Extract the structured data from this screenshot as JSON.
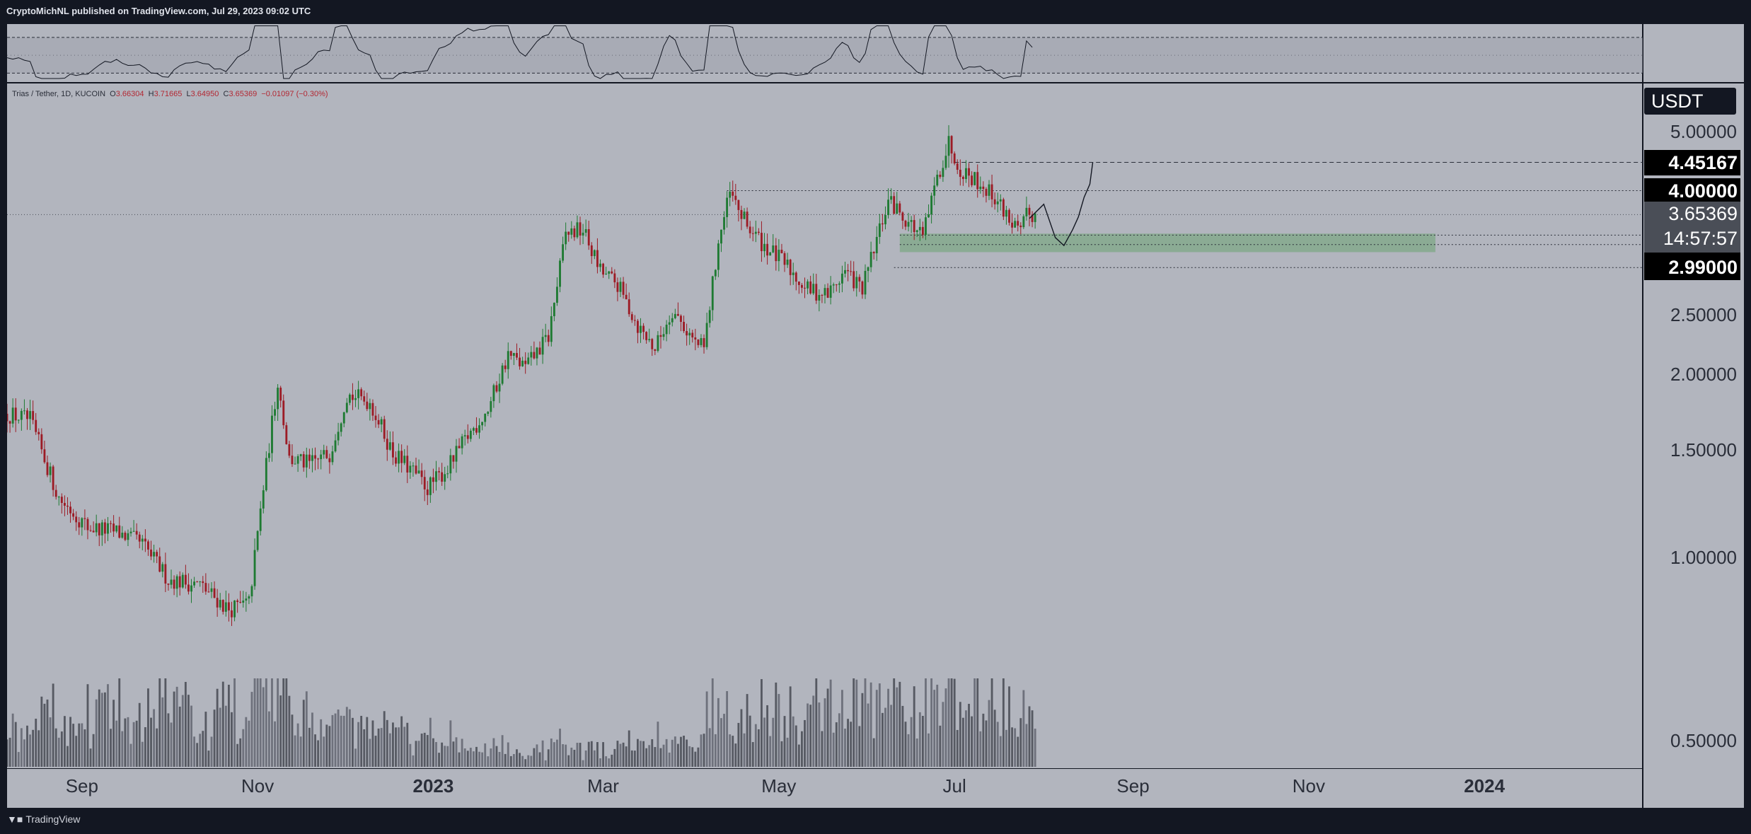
{
  "header": {
    "published_text": "CryptoMichNL published on TradingView.com, Jul 29, 2023 09:02 UTC"
  },
  "legend": {
    "symbol": "Trias / Tether, 1D, KUCOIN",
    "o_label": "O",
    "o": "3.66304",
    "h_label": "H",
    "h": "3.71665",
    "l_label": "L",
    "l": "3.64950",
    "c_label": "C",
    "c": "3.65369",
    "change": "−0.01097 (−0.30%)"
  },
  "footer": {
    "brand": "TradingView"
  },
  "axis": {
    "currency": "USDT",
    "current_price": "3.65369",
    "countdown": "14:57:57"
  },
  "colors": {
    "panel_bg": "#b2b5be",
    "frame": "#131722",
    "up": "#1e7a32",
    "down": "#9c1b25",
    "zone": "#7ea885",
    "level_label_bg": "#000000"
  },
  "chart_data": {
    "type": "candlestick",
    "title": "Trias / Tether, 1D, KUCOIN",
    "y_scale": "log",
    "ylim": [
      0.45,
      6.0
    ],
    "y_ticks": [
      "5.00000",
      "2.50000",
      "2.00000",
      "1.50000",
      "1.00000",
      "0.50000"
    ],
    "x_ticks": [
      {
        "label": "Sep",
        "date": "2022-09-01",
        "bold": false
      },
      {
        "label": "Nov",
        "date": "2022-11-01",
        "bold": false
      },
      {
        "label": "2023",
        "date": "2023-01-01",
        "bold": true
      },
      {
        "label": "Mar",
        "date": "2023-03-01",
        "bold": false
      },
      {
        "label": "May",
        "date": "2023-05-01",
        "bold": false
      },
      {
        "label": "Jul",
        "date": "2023-07-01",
        "bold": false
      },
      {
        "label": "Sep",
        "date": "2023-09-01",
        "bold": false
      },
      {
        "label": "Nov",
        "date": "2023-11-01",
        "bold": false
      },
      {
        "label": "2024",
        "date": "2024-01-01",
        "bold": true
      }
    ],
    "x_range": [
      "2022-08-06",
      "2024-02-25"
    ],
    "levels": [
      {
        "price": 4.45167,
        "label": "4.45167",
        "style": "dashed",
        "from": "2023-07-01"
      },
      {
        "price": 4.0,
        "label": "4.00000",
        "style": "dotted",
        "from": "2023-04-13"
      },
      {
        "price": 3.381,
        "label": "3.38100",
        "style": "dotted",
        "from": "2023-06-12"
      },
      {
        "price": 3.26213,
        "label": "3.26213",
        "style": "dotted",
        "from": "2023-06-12"
      },
      {
        "price": 2.99,
        "label": "2.99000",
        "style": "dotted",
        "from": "2023-06-10"
      }
    ],
    "support_zone": {
      "from": "2023-06-12",
      "to": "2023-12-15",
      "low": 3.17,
      "high": 3.4
    },
    "projection": [
      {
        "date": "2023-07-27",
        "price": 3.6
      },
      {
        "date": "2023-08-01",
        "price": 3.8
      },
      {
        "date": "2023-08-05",
        "price": 3.35
      },
      {
        "date": "2023-08-08",
        "price": 3.25
      },
      {
        "date": "2023-08-11",
        "price": 3.45
      },
      {
        "date": "2023-08-13",
        "price": 3.62
      },
      {
        "date": "2023-08-15",
        "price": 3.9
      },
      {
        "date": "2023-08-17",
        "price": 4.1
      },
      {
        "date": "2023-08-18",
        "price": 4.45
      }
    ],
    "price_path": [
      {
        "date": "2022-08-06",
        "price": 1.72
      },
      {
        "date": "2022-08-14",
        "price": 1.68
      },
      {
        "date": "2022-08-24",
        "price": 1.25
      },
      {
        "date": "2022-09-03",
        "price": 1.12
      },
      {
        "date": "2022-09-13",
        "price": 1.1
      },
      {
        "date": "2022-09-22",
        "price": 1.05
      },
      {
        "date": "2022-10-01",
        "price": 0.92
      },
      {
        "date": "2022-10-12",
        "price": 0.9
      },
      {
        "date": "2022-10-22",
        "price": 0.82
      },
      {
        "date": "2022-10-29",
        "price": 0.84
      },
      {
        "date": "2022-11-03",
        "price": 1.3
      },
      {
        "date": "2022-11-08",
        "price": 1.95
      },
      {
        "date": "2022-11-12",
        "price": 1.45
      },
      {
        "date": "2022-11-19",
        "price": 1.42
      },
      {
        "date": "2022-11-26",
        "price": 1.48
      },
      {
        "date": "2022-12-02",
        "price": 1.85
      },
      {
        "date": "2022-12-10",
        "price": 1.8
      },
      {
        "date": "2022-12-18",
        "price": 1.48
      },
      {
        "date": "2022-12-25",
        "price": 1.38
      },
      {
        "date": "2022-12-30",
        "price": 1.3
      },
      {
        "date": "2023-01-06",
        "price": 1.4
      },
      {
        "date": "2023-01-13",
        "price": 1.58
      },
      {
        "date": "2023-01-20",
        "price": 1.75
      },
      {
        "date": "2023-01-27",
        "price": 2.15
      },
      {
        "date": "2023-02-02",
        "price": 2.05
      },
      {
        "date": "2023-02-10",
        "price": 2.3
      },
      {
        "date": "2023-02-16",
        "price": 3.4
      },
      {
        "date": "2023-02-22",
        "price": 3.45
      },
      {
        "date": "2023-02-28",
        "price": 2.95
      },
      {
        "date": "2023-03-06",
        "price": 2.8
      },
      {
        "date": "2023-03-13",
        "price": 2.4
      },
      {
        "date": "2023-03-19",
        "price": 2.2
      },
      {
        "date": "2023-03-25",
        "price": 2.55
      },
      {
        "date": "2023-04-02",
        "price": 2.25
      },
      {
        "date": "2023-04-05",
        "price": 2.2
      },
      {
        "date": "2023-04-10",
        "price": 3.3
      },
      {
        "date": "2023-04-14",
        "price": 3.95
      },
      {
        "date": "2023-04-20",
        "price": 3.5
      },
      {
        "date": "2023-04-26",
        "price": 3.25
      },
      {
        "date": "2023-05-04",
        "price": 3.0
      },
      {
        "date": "2023-05-11",
        "price": 2.75
      },
      {
        "date": "2023-05-18",
        "price": 2.7
      },
      {
        "date": "2023-05-24",
        "price": 2.95
      },
      {
        "date": "2023-05-30",
        "price": 2.75
      },
      {
        "date": "2023-06-03",
        "price": 3.2
      },
      {
        "date": "2023-06-08",
        "price": 3.85
      },
      {
        "date": "2023-06-14",
        "price": 3.6
      },
      {
        "date": "2023-06-20",
        "price": 3.35
      },
      {
        "date": "2023-06-25",
        "price": 4.2
      },
      {
        "date": "2023-06-29",
        "price": 4.8
      },
      {
        "date": "2023-07-03",
        "price": 4.35
      },
      {
        "date": "2023-07-09",
        "price": 4.15
      },
      {
        "date": "2023-07-15",
        "price": 3.9
      },
      {
        "date": "2023-07-20",
        "price": 3.6
      },
      {
        "date": "2023-07-24",
        "price": 3.38
      },
      {
        "date": "2023-07-26",
        "price": 3.65
      },
      {
        "date": "2023-07-29",
        "price": 3.65
      }
    ],
    "rsi": {
      "upper": 70,
      "lower": 30,
      "ylim": [
        20,
        85
      ]
    }
  }
}
